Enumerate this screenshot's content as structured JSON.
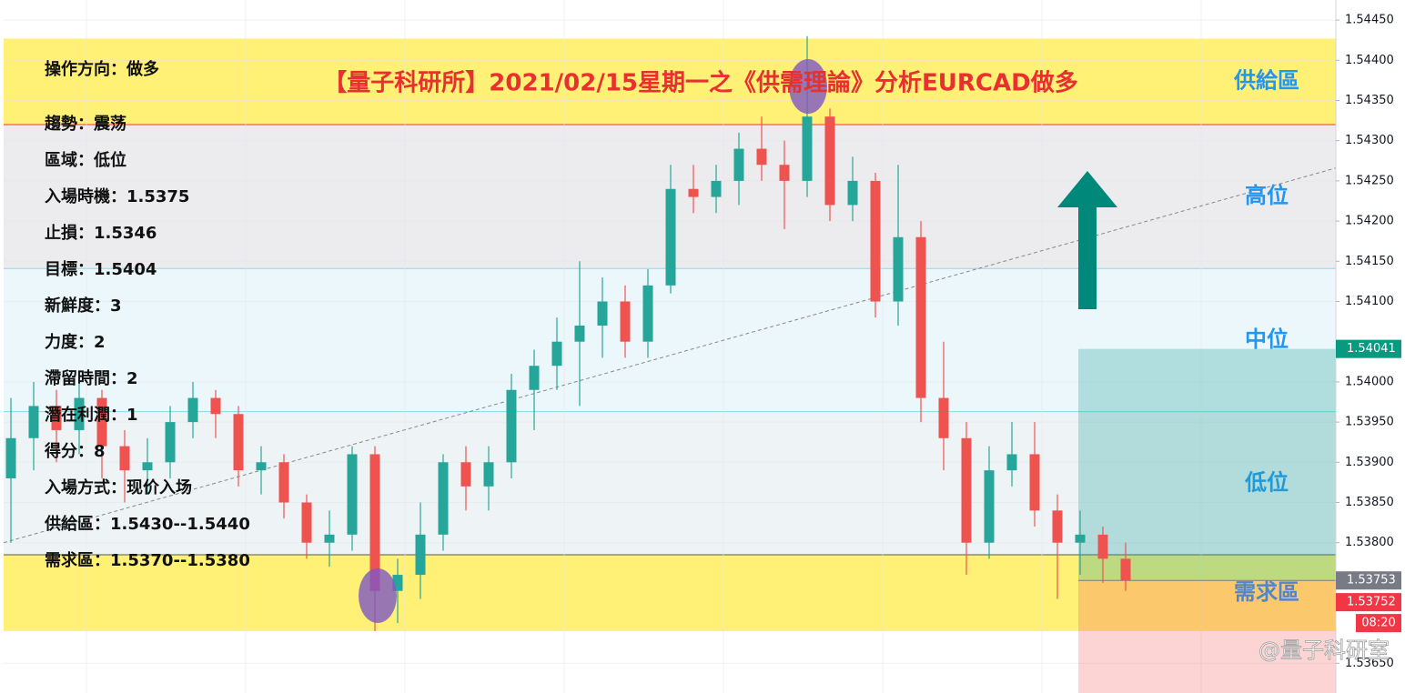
{
  "chart_data": {
    "type": "candlestick",
    "title": "【量子科研所】2021/02/15星期一之《供需理論》分析EURCAD做多",
    "notes": [
      "操作方向：做多",
      "趨勢：震荡",
      "區域：低位",
      "入場時機：1.5375",
      "止損：1.5346",
      "目標：1.5404",
      "新鮮度：3",
      "力度：2",
      "滯留時間：2",
      "潛在利潤：1",
      "得分：8",
      "入場方式：现价入场",
      "供給區：1.5430--1.5440",
      "需求區：1.5370--1.5380"
    ],
    "zones": [
      {
        "name": "供給區",
        "range": [
          1.5432,
          1.54427
        ],
        "color": "#fff176"
      },
      {
        "name": "高位",
        "range": [
          1.54141,
          1.5432
        ],
        "color": "#ececee"
      },
      {
        "name": "中位",
        "range": [
          1.53963,
          1.54141
        ],
        "color": "#ecf7fb"
      },
      {
        "name": "低位",
        "range": [
          1.53785,
          1.53963
        ],
        "color": "#eef4f6"
      },
      {
        "name": "需求區",
        "range": [
          1.5369,
          1.53785
        ],
        "color": "#fff176"
      }
    ],
    "ylim": [
      1.53613,
      1.54475
    ],
    "yticks": [
      {
        "value": 1.5445,
        "label": "1.54450"
      },
      {
        "value": 1.544,
        "label": "1.54400"
      },
      {
        "value": 1.5435,
        "label": "1.54350"
      },
      {
        "value": 1.543,
        "label": "1.54300"
      },
      {
        "value": 1.5425,
        "label": "1.54250"
      },
      {
        "value": 1.542,
        "label": "1.54200"
      },
      {
        "value": 1.5415,
        "label": "1.54150"
      },
      {
        "value": 1.541,
        "label": "1.54100"
      },
      {
        "value": 1.54,
        "label": "1.54000"
      },
      {
        "value": 1.5395,
        "label": "1.53950"
      },
      {
        "value": 1.539,
        "label": "1.53900"
      },
      {
        "value": 1.5385,
        "label": "1.53850"
      },
      {
        "value": 1.538,
        "label": "1.53800"
      },
      {
        "value": 1.5365,
        "label": "1.53650"
      }
    ],
    "grid": true,
    "up_color": "#26a69a",
    "down_color": "#ef5350",
    "trendline": [
      1.538,
      1.54266
    ],
    "price_tags": [
      {
        "value": 1.54041,
        "color": "#089981"
      },
      {
        "value": 1.53753,
        "color": "#787b86"
      },
      {
        "value": 1.53752,
        "color": "#f23645"
      }
    ],
    "countdown": "08:20",
    "watermark": "@量子科研室",
    "candles": [
      [
        1.5388,
        1.5398,
        1.538,
        1.5393
      ],
      [
        1.5393,
        1.54,
        1.5389,
        1.5397
      ],
      [
        1.5397,
        1.5399,
        1.539,
        1.5394
      ],
      [
        1.5394,
        1.54,
        1.5391,
        1.5398
      ],
      [
        1.5398,
        1.5399,
        1.5388,
        1.5392
      ],
      [
        1.5392,
        1.5394,
        1.5385,
        1.5389
      ],
      [
        1.5389,
        1.5393,
        1.5386,
        1.539
      ],
      [
        1.539,
        1.5397,
        1.5388,
        1.5395
      ],
      [
        1.5395,
        1.54,
        1.5393,
        1.5398
      ],
      [
        1.5398,
        1.5399,
        1.5393,
        1.5396
      ],
      [
        1.5396,
        1.5397,
        1.5387,
        1.5389
      ],
      [
        1.5389,
        1.5392,
        1.5386,
        1.539
      ],
      [
        1.539,
        1.5391,
        1.5383,
        1.5385
      ],
      [
        1.5385,
        1.5386,
        1.5378,
        1.538
      ],
      [
        1.538,
        1.5384,
        1.5377,
        1.5381
      ],
      [
        1.5381,
        1.5392,
        1.5379,
        1.5391
      ],
      [
        1.5391,
        1.5392,
        1.5369,
        1.5374
      ],
      [
        1.5374,
        1.5378,
        1.537,
        1.5376
      ],
      [
        1.5376,
        1.5385,
        1.5373,
        1.5381
      ],
      [
        1.5381,
        1.5391,
        1.5379,
        1.539
      ],
      [
        1.539,
        1.5392,
        1.5384,
        1.5387
      ],
      [
        1.5387,
        1.5392,
        1.5384,
        1.539
      ],
      [
        1.539,
        1.5401,
        1.5388,
        1.5399
      ],
      [
        1.5399,
        1.5404,
        1.5394,
        1.5402
      ],
      [
        1.5402,
        1.5408,
        1.5399,
        1.5405
      ],
      [
        1.5405,
        1.5415,
        1.5397,
        1.5407
      ],
      [
        1.5407,
        1.5413,
        1.5403,
        1.541
      ],
      [
        1.541,
        1.5412,
        1.5403,
        1.5405
      ],
      [
        1.5405,
        1.5414,
        1.5403,
        1.5412
      ],
      [
        1.5412,
        1.5427,
        1.5411,
        1.5424
      ],
      [
        1.5424,
        1.5427,
        1.5421,
        1.5423
      ],
      [
        1.5423,
        1.5427,
        1.5421,
        1.5425
      ],
      [
        1.5425,
        1.5431,
        1.5422,
        1.5429
      ],
      [
        1.5429,
        1.5433,
        1.5425,
        1.5427
      ],
      [
        1.5427,
        1.543,
        1.5419,
        1.5425
      ],
      [
        1.5425,
        1.5443,
        1.5423,
        1.5433
      ],
      [
        1.5433,
        1.5434,
        1.542,
        1.5422
      ],
      [
        1.5422,
        1.5428,
        1.542,
        1.5425
      ],
      [
        1.5425,
        1.5426,
        1.5408,
        1.541
      ],
      [
        1.541,
        1.5427,
        1.5407,
        1.5418
      ],
      [
        1.5418,
        1.542,
        1.5395,
        1.5398
      ],
      [
        1.5398,
        1.5405,
        1.5389,
        1.5393
      ],
      [
        1.5393,
        1.5395,
        1.5376,
        1.538
      ],
      [
        1.538,
        1.5392,
        1.5378,
        1.5389
      ],
      [
        1.5389,
        1.5395,
        1.5387,
        1.5391
      ],
      [
        1.5391,
        1.5395,
        1.5382,
        1.5384
      ],
      [
        1.5384,
        1.5386,
        1.5373,
        1.538
      ],
      [
        1.538,
        1.5384,
        1.5376,
        1.5381
      ],
      [
        1.5381,
        1.5382,
        1.5375,
        1.5378
      ],
      [
        1.5378,
        1.538,
        1.5374,
        1.53753
      ]
    ]
  }
}
